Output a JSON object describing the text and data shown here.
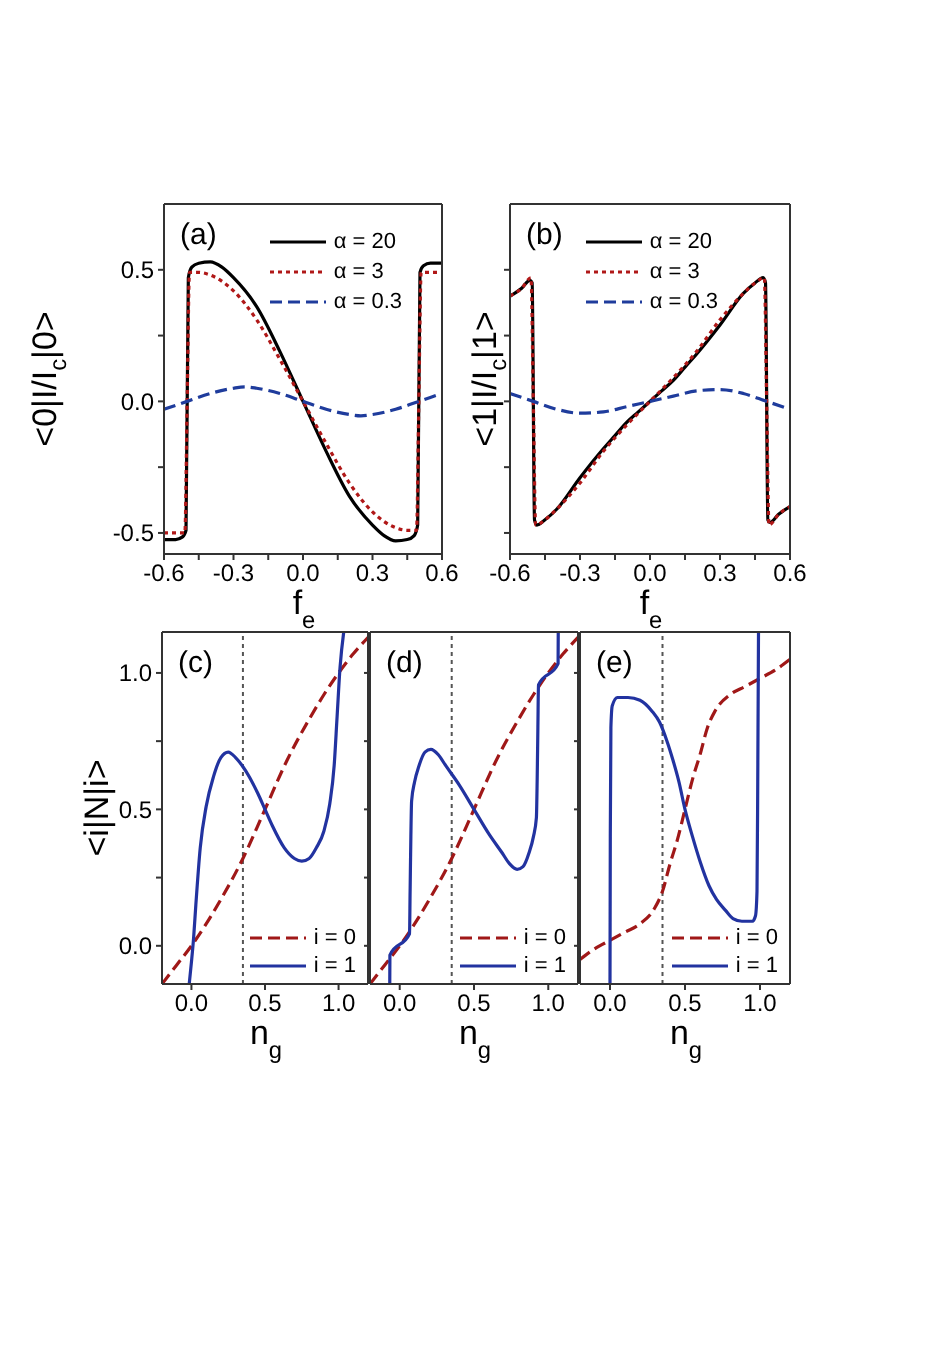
{
  "chart_data": [
    {
      "type": "line",
      "annotations": [
        "(a)"
      ],
      "xlabel": "f$_{e}$",
      "ylabel": "<0|I/I$_{c}$|0>",
      "xlim": [
        -0.6,
        0.6
      ],
      "xticks": [
        -0.6,
        {
          "value": -0.45,
          "label": null
        },
        -0.3,
        {
          "value": -0.15,
          "label": null
        },
        {
          "value": 0,
          "label": "0.0"
        },
        {
          "value": 0.15,
          "label": null
        },
        0.3,
        {
          "value": 0.45,
          "label": null
        },
        0.6
      ],
      "ylim": [
        -0.58,
        0.75
      ],
      "yticks": [
        -0.5,
        {
          "value": -0.25,
          "label": null
        },
        {
          "value": 0,
          "label": "0.0"
        },
        {
          "value": 0.25,
          "label": null
        },
        0.5
      ],
      "legend": "top right",
      "series": [
        {
          "name": "α = 20",
          "color": "#000000",
          "line_style": "solid",
          "x": [
            -0.6,
            -0.55,
            -0.52,
            -0.505,
            -0.495,
            -0.48,
            -0.45,
            -0.4,
            -0.35,
            -0.3,
            -0.2,
            -0.1,
            0,
            0.1,
            0.2,
            0.3,
            0.35,
            0.4,
            0.45,
            0.48,
            0.495,
            0.505,
            0.52,
            0.55,
            0.6
          ],
          "values": [
            -0.525,
            -0.525,
            -0.515,
            -0.49,
            0.47,
            0.51,
            0.525,
            0.53,
            0.51,
            0.47,
            0.36,
            0.19,
            0,
            -0.19,
            -0.36,
            -0.47,
            -0.51,
            -0.53,
            -0.525,
            -0.51,
            -0.47,
            0.49,
            0.515,
            0.525,
            0.525
          ]
        },
        {
          "name": "α = 3",
          "color": "#b01818",
          "line_style": "dotted",
          "x": [
            -0.6,
            -0.55,
            -0.51,
            -0.5,
            -0.49,
            -0.45,
            -0.4,
            -0.3,
            -0.2,
            -0.1,
            0,
            0.1,
            0.2,
            0.3,
            0.4,
            0.45,
            0.49,
            0.5,
            0.51,
            0.55,
            0.6
          ],
          "values": [
            -0.5,
            -0.5,
            -0.5,
            0,
            0.49,
            0.49,
            0.48,
            0.42,
            0.31,
            0.16,
            0,
            -0.16,
            -0.31,
            -0.42,
            -0.48,
            -0.49,
            -0.49,
            0,
            0.49,
            0.49,
            0.49
          ]
        },
        {
          "name": "α = 0.3",
          "color": "#1f3c9c",
          "line_style": "dashed",
          "x": [
            -0.6,
            -0.5,
            -0.4,
            -0.3,
            -0.25,
            -0.2,
            -0.1,
            0,
            0.1,
            0.2,
            0.25,
            0.3,
            0.4,
            0.5,
            0.6
          ],
          "values": [
            -0.03,
            0,
            0.03,
            0.05,
            0.055,
            0.05,
            0.03,
            0,
            -0.03,
            -0.05,
            -0.055,
            -0.05,
            -0.03,
            0,
            0.03
          ]
        }
      ]
    },
    {
      "type": "line",
      "annotations": [
        "(b)"
      ],
      "xlabel": "f$_{e}$",
      "ylabel": "<1|I/I$_{c}$|1>",
      "tick_labels": "x",
      "xlim": [
        -0.6,
        0.6
      ],
      "xticks": [
        -0.6,
        {
          "value": -0.45,
          "label": null
        },
        -0.3,
        {
          "value": -0.15,
          "label": null
        },
        {
          "value": 0,
          "label": "0.0"
        },
        {
          "value": 0.15,
          "label": null
        },
        0.3,
        {
          "value": 0.45,
          "label": null
        },
        0.6
      ],
      "ylim": [
        -0.58,
        0.75
      ],
      "yticks": [
        -0.5,
        -0.25,
        0,
        0.25,
        0.5
      ],
      "legend": "top right",
      "series": [
        {
          "name": "α = 20",
          "color": "#000000",
          "line_style": "solid",
          "x": [
            -0.6,
            -0.55,
            -0.515,
            -0.505,
            -0.495,
            -0.485,
            -0.45,
            -0.4,
            -0.3,
            -0.2,
            -0.15,
            -0.1,
            -0.05,
            0,
            0.05,
            0.1,
            0.15,
            0.2,
            0.3,
            0.4,
            0.45,
            0.485,
            0.495,
            0.505,
            0.515,
            0.55,
            0.6
          ],
          "values": [
            0.4,
            0.43,
            0.46,
            0.45,
            -0.45,
            -0.47,
            -0.45,
            -0.41,
            -0.29,
            -0.18,
            -0.13,
            -0.08,
            -0.04,
            0,
            0.04,
            0.08,
            0.13,
            0.18,
            0.29,
            0.41,
            0.45,
            0.47,
            0.45,
            -0.45,
            -0.46,
            -0.43,
            -0.4
          ]
        },
        {
          "name": "α = 3",
          "color": "#b01818",
          "line_style": "dotted",
          "x": [
            -0.6,
            -0.55,
            -0.51,
            -0.5,
            -0.49,
            -0.45,
            -0.4,
            -0.3,
            -0.2,
            -0.1,
            0,
            0.1,
            0.2,
            0.3,
            0.4,
            0.45,
            0.49,
            0.5,
            0.51,
            0.55,
            0.6
          ],
          "values": [
            0.4,
            0.43,
            0.47,
            0,
            -0.47,
            -0.45,
            -0.41,
            -0.31,
            -0.19,
            -0.09,
            0,
            0.09,
            0.19,
            0.31,
            0.41,
            0.45,
            0.47,
            0,
            -0.47,
            -0.43,
            -0.4
          ]
        },
        {
          "name": "α = 0.3",
          "color": "#1f3c9c",
          "line_style": "dashed",
          "x": [
            -0.6,
            -0.5,
            -0.4,
            -0.3,
            -0.2,
            -0.1,
            0,
            0.1,
            0.2,
            0.3,
            0.4,
            0.5,
            0.6
          ],
          "values": [
            0.03,
            0,
            -0.03,
            -0.045,
            -0.04,
            -0.02,
            0,
            0.02,
            0.04,
            0.045,
            0.03,
            0,
            -0.03
          ]
        }
      ]
    },
    {
      "type": "line",
      "annotations": [
        "(c)"
      ],
      "xlabel": "n$_{g}$",
      "ylabel": "<i|N|i>",
      "xlim": [
        -0.2,
        1.2
      ],
      "xticks": [
        {
          "value": 0,
          "label": "0.0"
        },
        0.5,
        {
          "value": 1,
          "label": "1.0"
        }
      ],
      "ylim": [
        -0.14,
        1.15
      ],
      "yticks": [
        {
          "value": 0,
          "label": "0.0"
        },
        {
          "value": 0.25,
          "label": null
        },
        0.5,
        {
          "value": 0.75,
          "label": null
        },
        {
          "value": 1,
          "label": "1.0"
        }
      ],
      "legend": "bottom right",
      "ref_lines": [
        {
          "axis": "x",
          "value": 0.35,
          "color": "#555555",
          "line_style": "dotted"
        }
      ],
      "series": [
        {
          "name": "i = 0",
          "color": "#a01818",
          "line_style": "dashed",
          "x": [
            -0.2,
            -0.1,
            0,
            0.1,
            0.2,
            0.35,
            0.5,
            0.65,
            0.8,
            0.9,
            1,
            1.1,
            1.2
          ],
          "values": [
            -0.14,
            -0.07,
            0,
            0.08,
            0.17,
            0.32,
            0.5,
            0.68,
            0.83,
            0.92,
            1,
            1.07,
            1.13
          ]
        },
        {
          "name": "i = 1",
          "color": "#2233a0",
          "line_style": "solid",
          "x": [
            -0.015,
            0,
            0.015,
            0.03,
            0.06,
            0.1,
            0.15,
            0.2,
            0.25,
            0.3,
            0.37,
            0.45,
            0.5,
            0.55,
            0.63,
            0.7,
            0.75,
            0.8,
            0.85,
            0.9,
            0.94,
            0.97,
            0.99,
            1.01,
            1.035
          ],
          "values": [
            -0.14,
            -0.06,
            0.03,
            0.15,
            0.36,
            0.51,
            0.62,
            0.69,
            0.71,
            0.69,
            0.64,
            0.56,
            0.5,
            0.44,
            0.36,
            0.32,
            0.31,
            0.32,
            0.36,
            0.42,
            0.52,
            0.66,
            0.84,
            1.02,
            1.15
          ]
        }
      ]
    },
    {
      "type": "line",
      "annotations": [
        "(d)"
      ],
      "xlabel": "n$_{g}$",
      "tick_labels": "x",
      "xlim": [
        -0.2,
        1.2
      ],
      "xticks": [
        {
          "value": 0,
          "label": "0.0"
        },
        0.5,
        {
          "value": 1,
          "label": "1.0"
        }
      ],
      "ylim": [
        -0.14,
        1.15
      ],
      "yticks": [
        0,
        0.25,
        0.5,
        0.75,
        1
      ],
      "legend": "bottom right",
      "ref_lines": [
        {
          "axis": "x",
          "value": 0.35,
          "color": "#555555",
          "line_style": "dotted"
        }
      ],
      "series": [
        {
          "name": "i = 0",
          "color": "#a01818",
          "line_style": "dashed",
          "x": [
            -0.2,
            -0.1,
            0,
            0.1,
            0.2,
            0.35,
            0.5,
            0.65,
            0.8,
            0.9,
            1,
            1.1,
            1.2
          ],
          "values": [
            -0.14,
            -0.07,
            0,
            0.08,
            0.17,
            0.32,
            0.5,
            0.68,
            0.83,
            0.92,
            1,
            1.07,
            1.13
          ]
        },
        {
          "name": "i = 1",
          "color": "#2233a0",
          "line_style": "solid",
          "x": [
            -0.067,
            -0.066,
            0.066,
            0.07,
            0.075,
            0.08,
            0.1,
            0.13,
            0.17,
            0.21,
            0.26,
            0.31,
            0.4,
            0.5,
            0.6,
            0.69,
            0.74,
            0.79,
            0.83,
            0.87,
            0.9,
            0.92,
            0.925,
            0.93,
            0.934,
            1.066,
            1.067
          ],
          "values": [
            -0.14,
            -0.034,
            0.044,
            0.2,
            0.4,
            0.53,
            0.6,
            0.66,
            0.71,
            0.72,
            0.7,
            0.66,
            0.59,
            0.5,
            0.41,
            0.34,
            0.3,
            0.28,
            0.29,
            0.34,
            0.4,
            0.47,
            0.6,
            0.8,
            0.956,
            1.034,
            1.15
          ]
        }
      ]
    },
    {
      "type": "line",
      "annotations": [
        "(e)"
      ],
      "xlabel": "n$_{g}$",
      "tick_labels": "x",
      "xlim": [
        -0.2,
        1.2
      ],
      "xticks": [
        {
          "value": 0,
          "label": "0.0"
        },
        0.5,
        {
          "value": 1,
          "label": "1.0"
        }
      ],
      "ylim": [
        -0.14,
        1.15
      ],
      "yticks": [
        0,
        0.25,
        0.5,
        0.75,
        1
      ],
      "legend": "bottom right",
      "ref_lines": [
        {
          "axis": "x",
          "value": 0.35,
          "color": "#555555",
          "line_style": "dotted"
        }
      ],
      "series": [
        {
          "name": "i = 0",
          "color": "#a01818",
          "line_style": "dashed",
          "x": [
            -0.2,
            -0.1,
            0,
            0.1,
            0.2,
            0.3,
            0.35,
            0.4,
            0.45,
            0.5,
            0.55,
            0.6,
            0.65,
            0.7,
            0.8,
            0.9,
            1,
            1.1,
            1.2
          ],
          "values": [
            -0.05,
            -0.01,
            0.02,
            0.05,
            0.08,
            0.14,
            0.2,
            0.3,
            0.39,
            0.5,
            0.61,
            0.7,
            0.8,
            0.86,
            0.92,
            0.95,
            0.98,
            1.01,
            1.05
          ]
        },
        {
          "name": "i = 1",
          "color": "#2233a0",
          "line_style": "solid",
          "x": [
            0,
            0.002,
            0.006,
            0.015,
            0.05,
            0.12,
            0.2,
            0.28,
            0.33,
            0.38,
            0.42,
            0.46,
            0.5,
            0.55,
            0.6,
            0.66,
            0.71,
            0.77,
            0.82,
            0.88,
            0.95,
            0.97,
            0.98,
            0.985,
            0.99
          ],
          "values": [
            -0.14,
            0.4,
            0.8,
            0.88,
            0.91,
            0.91,
            0.9,
            0.86,
            0.82,
            0.75,
            0.68,
            0.6,
            0.5,
            0.4,
            0.31,
            0.22,
            0.17,
            0.13,
            0.1,
            0.09,
            0.09,
            0.11,
            0.2,
            0.6,
            1.15
          ]
        }
      ]
    }
  ]
}
